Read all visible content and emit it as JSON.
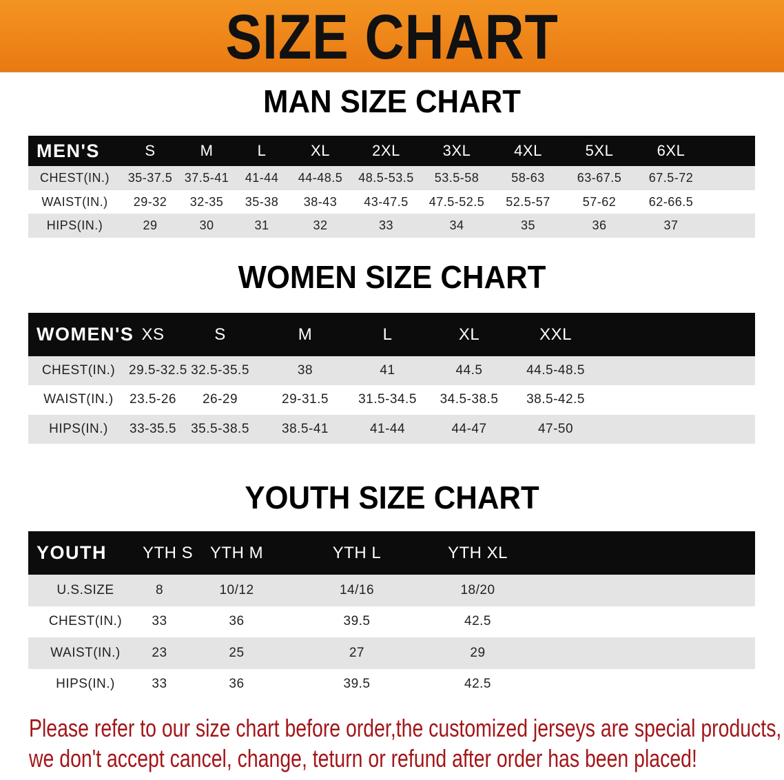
{
  "banner": {
    "title": "SIZE CHART",
    "color": "#ee8418"
  },
  "men": {
    "title": "MAN SIZE CHART",
    "header": [
      "MEN'S",
      "S",
      "M",
      "L",
      "XL",
      "2XL",
      "3XL",
      "4XL",
      "5XL",
      "6XL"
    ],
    "rows": [
      [
        "CHEST(IN.)",
        "35-37.5",
        "37.5-41",
        "41-44",
        "44-48.5",
        "48.5-53.5",
        "53.5-58",
        "58-63",
        "63-67.5",
        "67.5-72"
      ],
      [
        "WAIST(IN.)",
        "29-32",
        "32-35",
        "35-38",
        "38-43",
        "43-47.5",
        "47.5-52.5",
        "52.5-57",
        "57-62",
        "62-66.5"
      ],
      [
        "HIPS(IN.)",
        "29",
        "30",
        "31",
        "32",
        "33",
        "34",
        "35",
        "36",
        "37"
      ]
    ]
  },
  "women": {
    "title": "WOMEN SIZE CHART",
    "header": [
      "WOMEN'S",
      "XS",
      "S",
      "M",
      "L",
      "XL",
      "XXL"
    ],
    "rows": [
      [
        "CHEST(IN.)",
        "29.5-32.5",
        "32.5-35.5",
        "38",
        "41",
        "44.5",
        "44.5-48.5"
      ],
      [
        "WAIST(IN.)",
        "23.5-26",
        "26-29",
        "29-31.5",
        "31.5-34.5",
        "34.5-38.5",
        "38.5-42.5"
      ],
      [
        "HIPS(IN.)",
        "33-35.5",
        "35.5-38.5",
        "38.5-41",
        "41-44",
        "44-47",
        "47-50"
      ]
    ]
  },
  "youth": {
    "title": "YOUTH SIZE CHART",
    "header": [
      "YOUTH",
      "YTH S",
      "YTH M",
      "YTH L",
      "YTH XL"
    ],
    "rows": [
      [
        "U.S.SIZE",
        "8",
        "10/12",
        "14/16",
        "18/20"
      ],
      [
        "CHEST(IN.)",
        "33",
        "36",
        "39.5",
        "42.5"
      ],
      [
        "WAIST(IN.)",
        "23",
        "25",
        "27",
        "29"
      ],
      [
        "HIPS(IN.)",
        "33",
        "36",
        "39.5",
        "42.5"
      ]
    ]
  },
  "note": {
    "line1": "Please refer to our size chart before order,the customized jerseys are special products,",
    "line2": "we don't accept cancel, change, teturn or refund after order has been placed!",
    "color": "#a3161a"
  }
}
